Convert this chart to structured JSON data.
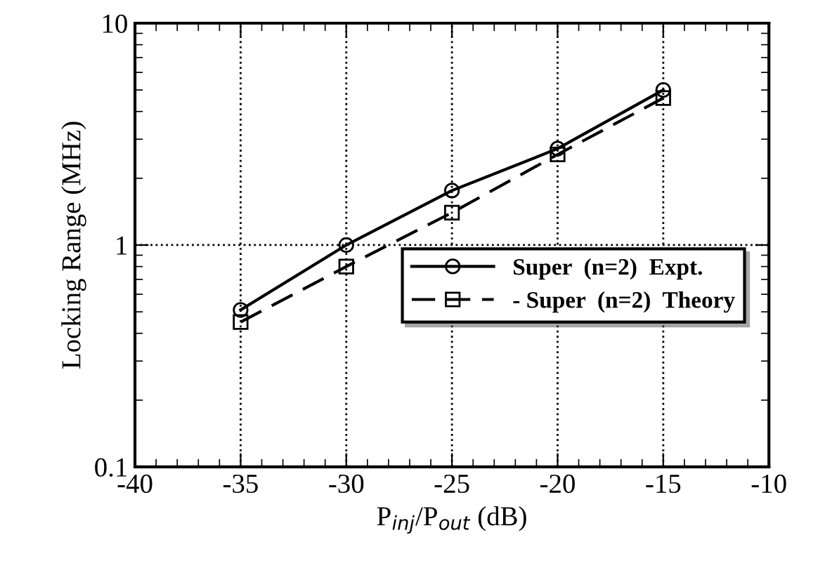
{
  "chart_data": {
    "type": "line",
    "xlabel": "P$_{inj}$/P$_{out}$ (dB)",
    "ylabel": "Locking Range (MHz)",
    "x": [
      -35,
      -30,
      -25,
      -20,
      -15
    ],
    "series": [
      {
        "name": "Super  (n=2)  Expt.",
        "color": "#000000",
        "values": [
          0.51,
          1.0,
          1.76,
          2.72,
          5.0
        ],
        "marker": "circle",
        "line_style": "solid"
      },
      {
        "name": "- Super  (n=2)  Theory",
        "color": "#000000",
        "values": [
          0.45,
          0.8,
          1.4,
          2.56,
          4.6
        ],
        "marker": "square",
        "line_style": "dashed"
      }
    ],
    "log": "y",
    "xlim": [
      -40,
      -10
    ],
    "xticks": [
      -40,
      -35,
      -30,
      -25,
      -20,
      -15,
      -10
    ],
    "ylim": [
      0.1,
      10
    ],
    "yticks": [
      0.1,
      1,
      10
    ],
    "grid": true,
    "legend": "bottom right"
  }
}
